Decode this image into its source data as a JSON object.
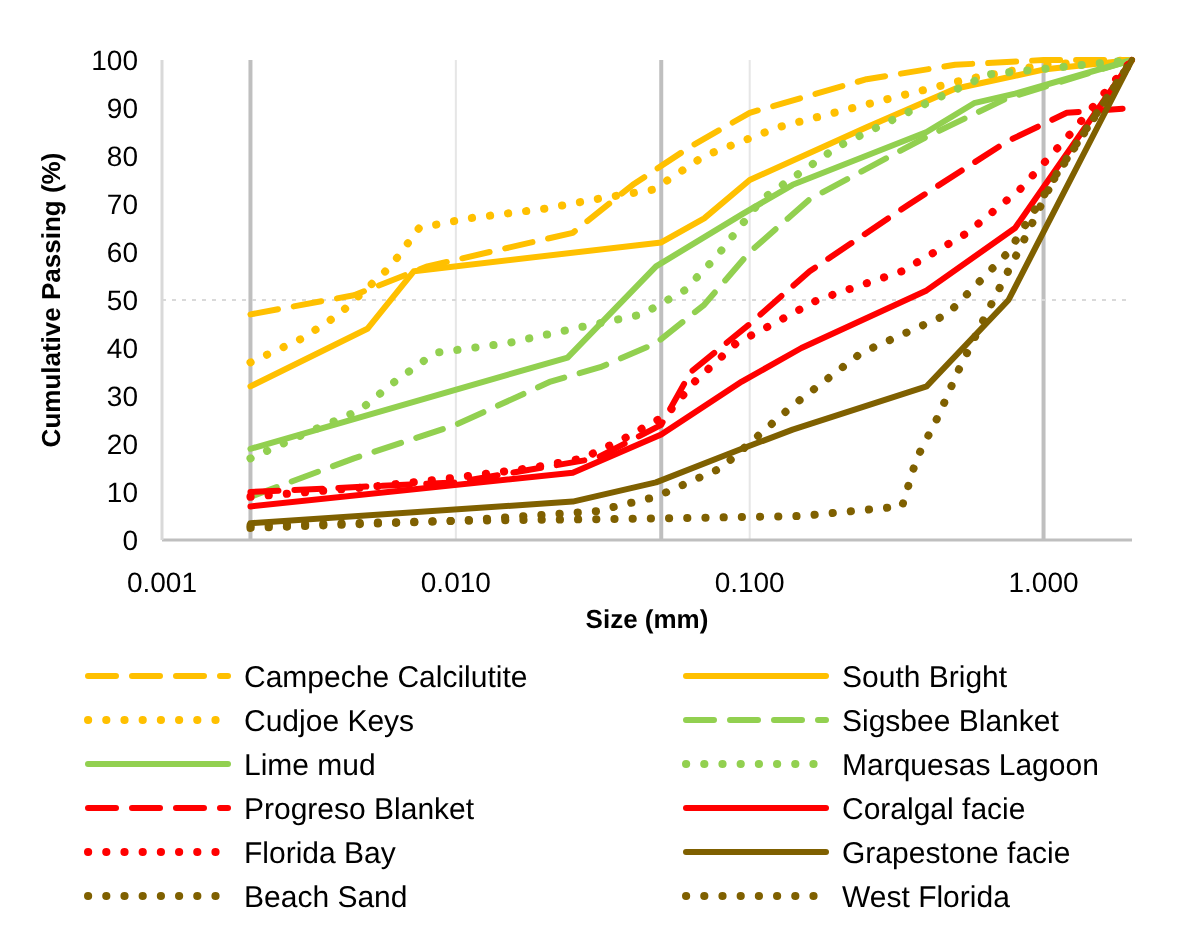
{
  "chart_data": {
    "type": "line",
    "xlabel": "Size (mm)",
    "ylabel": "Cumulative Passing (%)",
    "log": "x",
    "grid": "x",
    "legend": "bottom",
    "xlim": [
      0.001,
      2
    ],
    "xticks": [
      {
        "value": 0.001,
        "label": "0.001"
      },
      {
        "value": 0.01,
        "label": "0.010"
      },
      {
        "value": 0.1,
        "label": "0.100"
      },
      {
        "value": 1,
        "label": "1.000"
      }
    ],
    "ylim": [
      0,
      100
    ],
    "yticks": [
      0,
      10,
      20,
      30,
      40,
      50,
      60,
      70,
      80,
      90,
      100
    ],
    "ref_lines": [
      {
        "axis": "x",
        "value": 0.002,
        "color": "#bfbfbf"
      },
      {
        "axis": "x",
        "value": 0.05,
        "color": "#bfbfbf"
      },
      {
        "axis": "x",
        "value": 1,
        "color": "#bfbfbf"
      },
      {
        "axis": "y",
        "value": 50,
        "color": "#d9d9d9",
        "line_style": "dotted"
      }
    ],
    "series": [
      {
        "name": "Campeche Calcilutite",
        "color": "#ffc000",
        "line_style": "dashed",
        "x": [
          0.002,
          0.0045,
          0.008,
          0.025,
          0.04,
          0.063,
          0.1,
          0.25,
          0.5,
          1,
          2
        ],
        "values": [
          47,
          51,
          57,
          64,
          74,
          82,
          89,
          96,
          99,
          100,
          100
        ]
      },
      {
        "name": "South Bright",
        "color": "#ffc000",
        "line_style": "solid",
        "x": [
          0.002,
          0.005,
          0.0072,
          0.05,
          0.07,
          0.1,
          0.25,
          0.5,
          1,
          2
        ],
        "values": [
          32,
          44,
          56,
          62,
          67,
          75,
          86,
          94,
          98,
          100
        ]
      },
      {
        "name": "Cudjoe Keys",
        "color": "#ffc000",
        "line_style": "dotted",
        "x": [
          0.002,
          0.003,
          0.004,
          0.006,
          0.0075,
          0.011,
          0.02,
          0.03,
          0.047,
          0.07,
          0.125,
          0.3,
          0.55,
          1,
          2
        ],
        "values": [
          37,
          42,
          47,
          57,
          65,
          67,
          69,
          71,
          73,
          80,
          86,
          92,
          96,
          99,
          100
        ]
      },
      {
        "name": "Sigsbee Blanket",
        "color": "#92d050",
        "line_style": "dashed",
        "x": [
          0.002,
          0.0045,
          0.01,
          0.021,
          0.031,
          0.048,
          0.07,
          0.1,
          0.16,
          0.4,
          0.75,
          2
        ],
        "values": [
          9,
          17,
          24,
          33,
          36,
          41,
          49,
          60,
          71,
          84,
          92,
          100
        ]
      },
      {
        "name": "Lime mud",
        "color": "#92d050",
        "line_style": "solid",
        "x": [
          0.002,
          0.024,
          0.048,
          0.095,
          0.14,
          0.4,
          0.58,
          0.8,
          2
        ],
        "values": [
          19,
          38,
          57,
          68,
          74,
          85,
          91,
          93,
          100
        ]
      },
      {
        "name": "Marquesas Lagoon",
        "color": "#92d050",
        "line_style": "dotted",
        "x": [
          0.002,
          0.0033,
          0.0047,
          0.0062,
          0.0085,
          0.015,
          0.025,
          0.043,
          0.06,
          0.077,
          0.11,
          0.2,
          0.4,
          0.65,
          2
        ],
        "values": [
          17,
          23,
          27,
          33,
          39,
          41,
          44,
          47,
          52,
          59,
          71,
          82,
          91,
          97,
          100
        ]
      },
      {
        "name": "Progreso Blanket",
        "color": "#ff0000",
        "line_style": "dashed",
        "x": [
          0.002,
          0.01,
          0.03,
          0.05,
          0.063,
          0.1,
          0.16,
          0.35,
          0.75,
          1.2,
          2
        ],
        "values": [
          10,
          12,
          17,
          24,
          35,
          45,
          56,
          70,
          83,
          89,
          90
        ]
      },
      {
        "name": "Coralgal facie",
        "color": "#ff0000",
        "line_style": "solid",
        "x": [
          0.002,
          0.025,
          0.05,
          0.094,
          0.15,
          0.4,
          0.8,
          2
        ],
        "values": [
          7,
          14,
          22,
          33,
          40,
          52,
          65,
          100
        ]
      },
      {
        "name": "Florida Bay",
        "color": "#ff0000",
        "line_style": "dotted",
        "x": [
          0.002,
          0.005,
          0.01,
          0.018,
          0.027,
          0.037,
          0.052,
          0.065,
          0.09,
          0.12,
          0.17,
          0.33,
          0.55,
          0.83,
          1.25,
          2
        ],
        "values": [
          9,
          11,
          13,
          15,
          17,
          21,
          26,
          33,
          41,
          45,
          50,
          56,
          64,
          73,
          85,
          100
        ]
      },
      {
        "name": "Grapestone facie",
        "color": "#7f6000",
        "line_style": "solid",
        "x": [
          0.002,
          0.025,
          0.048,
          0.094,
          0.14,
          0.4,
          0.76,
          2
        ],
        "values": [
          3.5,
          8,
          12,
          19,
          23,
          32,
          50,
          100
        ]
      },
      {
        "name": "Beach Sand",
        "color": "#7f6000",
        "line_style": "dotted",
        "x": [
          0.002,
          0.01,
          0.05,
          0.15,
          0.33,
          0.37,
          0.44,
          0.51,
          0.65,
          0.85,
          1.1,
          2
        ],
        "values": [
          3,
          4,
          4.5,
          5,
          7,
          17,
          26,
          35,
          48,
          62,
          76,
          100
        ]
      },
      {
        "name": "West Florida",
        "color": "#7f6000",
        "line_style": "dotted",
        "x": [
          0.002,
          0.01,
          0.03,
          0.048,
          0.08,
          0.14,
          0.24,
          0.47,
          0.76,
          1.08,
          2
        ],
        "values": [
          2.5,
          4,
          6,
          9,
          15,
          28,
          39,
          47,
          60,
          75,
          100
        ]
      }
    ]
  }
}
